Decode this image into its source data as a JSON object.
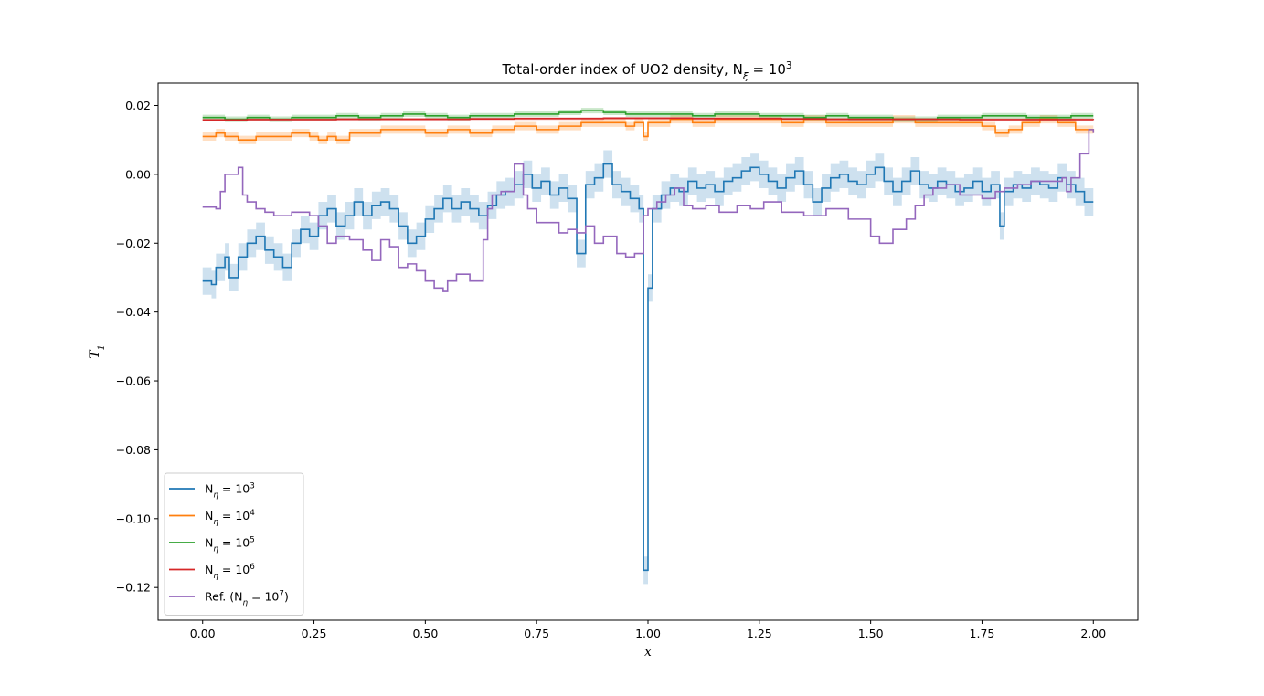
{
  "chart_data": {
    "type": "line",
    "drawstyle": "steps",
    "title": "Total-order index of UO2 density, N_ξ = 10^3",
    "xlabel": "x",
    "ylabel": "T_1",
    "xlim": [
      -0.1,
      2.1
    ],
    "ylim": [
      -0.1295,
      0.0265
    ],
    "xticks": [
      "0.00",
      "0.25",
      "0.50",
      "0.75",
      "1.00",
      "1.25",
      "1.50",
      "1.75",
      "2.00"
    ],
    "yticks": [
      "0.02",
      "0.00",
      "−0.02",
      "−0.04",
      "−0.06",
      "−0.08",
      "−0.10",
      "−0.12"
    ],
    "grid": false,
    "legend_position": "lower-left",
    "series": [
      {
        "name": "N_η = 10^3",
        "color": "#1f77b4",
        "band_color": "#1f77b4",
        "band_halfwidth": 0.004,
        "x": [
          0.0,
          0.02,
          0.03,
          0.05,
          0.06,
          0.08,
          0.1,
          0.12,
          0.14,
          0.16,
          0.18,
          0.2,
          0.22,
          0.24,
          0.26,
          0.28,
          0.3,
          0.32,
          0.34,
          0.36,
          0.38,
          0.4,
          0.42,
          0.44,
          0.46,
          0.48,
          0.5,
          0.52,
          0.54,
          0.56,
          0.58,
          0.6,
          0.62,
          0.64,
          0.66,
          0.68,
          0.7,
          0.72,
          0.74,
          0.76,
          0.78,
          0.8,
          0.82,
          0.84,
          0.86,
          0.88,
          0.9,
          0.92,
          0.94,
          0.96,
          0.98,
          0.99,
          1.0,
          1.01,
          1.03,
          1.05,
          1.07,
          1.09,
          1.11,
          1.13,
          1.15,
          1.17,
          1.19,
          1.21,
          1.23,
          1.25,
          1.27,
          1.29,
          1.31,
          1.33,
          1.35,
          1.37,
          1.39,
          1.41,
          1.43,
          1.45,
          1.47,
          1.49,
          1.51,
          1.53,
          1.55,
          1.57,
          1.59,
          1.61,
          1.63,
          1.65,
          1.67,
          1.69,
          1.71,
          1.73,
          1.75,
          1.77,
          1.79,
          1.8,
          1.82,
          1.84,
          1.86,
          1.88,
          1.9,
          1.92,
          1.94,
          1.96,
          1.98,
          2.0
        ],
        "y": [
          -0.031,
          -0.032,
          -0.027,
          -0.024,
          -0.03,
          -0.024,
          -0.02,
          -0.018,
          -0.022,
          -0.024,
          -0.027,
          -0.02,
          -0.016,
          -0.018,
          -0.012,
          -0.01,
          -0.015,
          -0.012,
          -0.008,
          -0.012,
          -0.009,
          -0.008,
          -0.01,
          -0.015,
          -0.02,
          -0.018,
          -0.013,
          -0.01,
          -0.007,
          -0.01,
          -0.008,
          -0.01,
          -0.012,
          -0.009,
          -0.006,
          -0.005,
          -0.003,
          0.0,
          -0.004,
          -0.002,
          -0.006,
          -0.004,
          -0.007,
          -0.023,
          -0.003,
          -0.001,
          0.003,
          -0.003,
          -0.005,
          -0.007,
          -0.01,
          -0.115,
          -0.033,
          -0.01,
          -0.006,
          -0.004,
          -0.005,
          -0.002,
          -0.004,
          -0.003,
          -0.005,
          -0.002,
          -0.001,
          0.001,
          0.002,
          0.0,
          -0.002,
          -0.004,
          -0.001,
          0.001,
          -0.003,
          -0.008,
          -0.004,
          -0.001,
          0.0,
          -0.002,
          -0.003,
          0.0,
          0.002,
          -0.002,
          -0.005,
          -0.002,
          0.001,
          -0.003,
          -0.004,
          -0.002,
          -0.003,
          -0.005,
          -0.004,
          -0.002,
          -0.005,
          -0.003,
          -0.015,
          -0.005,
          -0.003,
          -0.004,
          -0.002,
          -0.003,
          -0.004,
          -0.001,
          -0.003,
          -0.005,
          -0.008,
          -0.008
        ]
      },
      {
        "name": "N_η = 10^4",
        "color": "#ff7f0e",
        "band_color": "#ff7f0e",
        "band_halfwidth": 0.0012,
        "x": [
          0.0,
          0.03,
          0.05,
          0.08,
          0.12,
          0.16,
          0.2,
          0.24,
          0.26,
          0.28,
          0.3,
          0.33,
          0.36,
          0.4,
          0.45,
          0.5,
          0.55,
          0.6,
          0.65,
          0.7,
          0.75,
          0.8,
          0.85,
          0.9,
          0.93,
          0.95,
          0.97,
          0.99,
          1.0,
          1.05,
          1.1,
          1.15,
          1.2,
          1.25,
          1.3,
          1.35,
          1.4,
          1.45,
          1.5,
          1.55,
          1.6,
          1.65,
          1.7,
          1.75,
          1.78,
          1.81,
          1.84,
          1.88,
          1.92,
          1.96,
          2.0
        ],
        "y": [
          0.011,
          0.012,
          0.011,
          0.01,
          0.011,
          0.011,
          0.012,
          0.011,
          0.01,
          0.011,
          0.01,
          0.012,
          0.012,
          0.013,
          0.013,
          0.012,
          0.013,
          0.012,
          0.013,
          0.014,
          0.013,
          0.014,
          0.015,
          0.015,
          0.015,
          0.014,
          0.015,
          0.011,
          0.015,
          0.016,
          0.015,
          0.016,
          0.016,
          0.016,
          0.015,
          0.016,
          0.015,
          0.015,
          0.015,
          0.016,
          0.015,
          0.015,
          0.015,
          0.014,
          0.012,
          0.013,
          0.015,
          0.016,
          0.015,
          0.013,
          0.012
        ]
      },
      {
        "name": "N_η = 10^5",
        "color": "#2ca02c",
        "band_color": "#2ca02c",
        "band_halfwidth": 0.0008,
        "x": [
          0.0,
          0.05,
          0.1,
          0.15,
          0.2,
          0.25,
          0.3,
          0.35,
          0.4,
          0.45,
          0.5,
          0.55,
          0.6,
          0.65,
          0.7,
          0.75,
          0.8,
          0.85,
          0.9,
          0.95,
          1.0,
          1.05,
          1.1,
          1.15,
          1.2,
          1.25,
          1.3,
          1.35,
          1.4,
          1.45,
          1.5,
          1.55,
          1.6,
          1.65,
          1.7,
          1.75,
          1.8,
          1.85,
          1.9,
          1.95,
          2.0
        ],
        "y": [
          0.0165,
          0.016,
          0.0165,
          0.016,
          0.0165,
          0.0165,
          0.017,
          0.0165,
          0.017,
          0.0175,
          0.017,
          0.0165,
          0.017,
          0.017,
          0.0175,
          0.0175,
          0.018,
          0.0185,
          0.018,
          0.0175,
          0.0175,
          0.0175,
          0.017,
          0.0175,
          0.0175,
          0.017,
          0.017,
          0.0165,
          0.017,
          0.0165,
          0.0165,
          0.016,
          0.016,
          0.0165,
          0.0165,
          0.017,
          0.017,
          0.0165,
          0.0165,
          0.017,
          0.017
        ]
      },
      {
        "name": "N_η = 10^6",
        "color": "#d62728",
        "band_color": "#d62728",
        "band_halfwidth": 0.0004,
        "x": [
          0.0,
          0.1,
          0.2,
          0.3,
          0.4,
          0.5,
          0.6,
          0.7,
          0.8,
          0.9,
          1.0,
          1.1,
          1.2,
          1.3,
          1.4,
          1.5,
          1.6,
          1.7,
          1.8,
          1.9,
          2.0
        ],
        "y": [
          0.0158,
          0.0159,
          0.0159,
          0.016,
          0.016,
          0.016,
          0.0161,
          0.0162,
          0.0162,
          0.0163,
          0.0163,
          0.0162,
          0.0162,
          0.0161,
          0.016,
          0.016,
          0.016,
          0.0159,
          0.0159,
          0.0159,
          0.0158
        ]
      },
      {
        "name": "Ref. (N_η = 10^7)",
        "color": "#9467bd",
        "band_halfwidth": 0,
        "x": [
          0.0,
          0.03,
          0.04,
          0.05,
          0.08,
          0.09,
          0.1,
          0.12,
          0.14,
          0.16,
          0.2,
          0.24,
          0.26,
          0.28,
          0.3,
          0.33,
          0.36,
          0.38,
          0.4,
          0.42,
          0.44,
          0.46,
          0.48,
          0.5,
          0.52,
          0.54,
          0.55,
          0.57,
          0.6,
          0.63,
          0.64,
          0.65,
          0.67,
          0.7,
          0.72,
          0.73,
          0.75,
          0.8,
          0.82,
          0.84,
          0.86,
          0.88,
          0.9,
          0.93,
          0.95,
          0.97,
          0.99,
          1.0,
          1.02,
          1.04,
          1.06,
          1.08,
          1.1,
          1.13,
          1.16,
          1.2,
          1.23,
          1.26,
          1.3,
          1.35,
          1.4,
          1.45,
          1.5,
          1.52,
          1.55,
          1.58,
          1.6,
          1.62,
          1.64,
          1.67,
          1.7,
          1.75,
          1.78,
          1.8,
          1.83,
          1.86,
          1.9,
          1.93,
          1.94,
          1.95,
          1.97,
          1.99,
          2.0
        ],
        "y": [
          -0.0095,
          -0.01,
          -0.005,
          0.0,
          0.002,
          -0.006,
          -0.008,
          -0.01,
          -0.011,
          -0.012,
          -0.011,
          -0.012,
          -0.015,
          -0.02,
          -0.018,
          -0.019,
          -0.022,
          -0.025,
          -0.019,
          -0.021,
          -0.027,
          -0.026,
          -0.028,
          -0.031,
          -0.033,
          -0.034,
          -0.031,
          -0.029,
          -0.031,
          -0.019,
          -0.01,
          -0.006,
          -0.005,
          0.003,
          -0.006,
          -0.01,
          -0.014,
          -0.017,
          -0.016,
          -0.017,
          -0.015,
          -0.02,
          -0.018,
          -0.023,
          -0.024,
          -0.023,
          -0.012,
          -0.01,
          -0.008,
          -0.006,
          -0.004,
          -0.009,
          -0.01,
          -0.009,
          -0.011,
          -0.009,
          -0.01,
          -0.008,
          -0.011,
          -0.012,
          -0.01,
          -0.013,
          -0.018,
          -0.02,
          -0.016,
          -0.013,
          -0.009,
          -0.006,
          -0.004,
          -0.003,
          -0.006,
          -0.007,
          -0.005,
          -0.004,
          -0.003,
          -0.002,
          -0.002,
          -0.001,
          -0.005,
          -0.001,
          0.006,
          0.013,
          0.012
        ]
      }
    ]
  }
}
